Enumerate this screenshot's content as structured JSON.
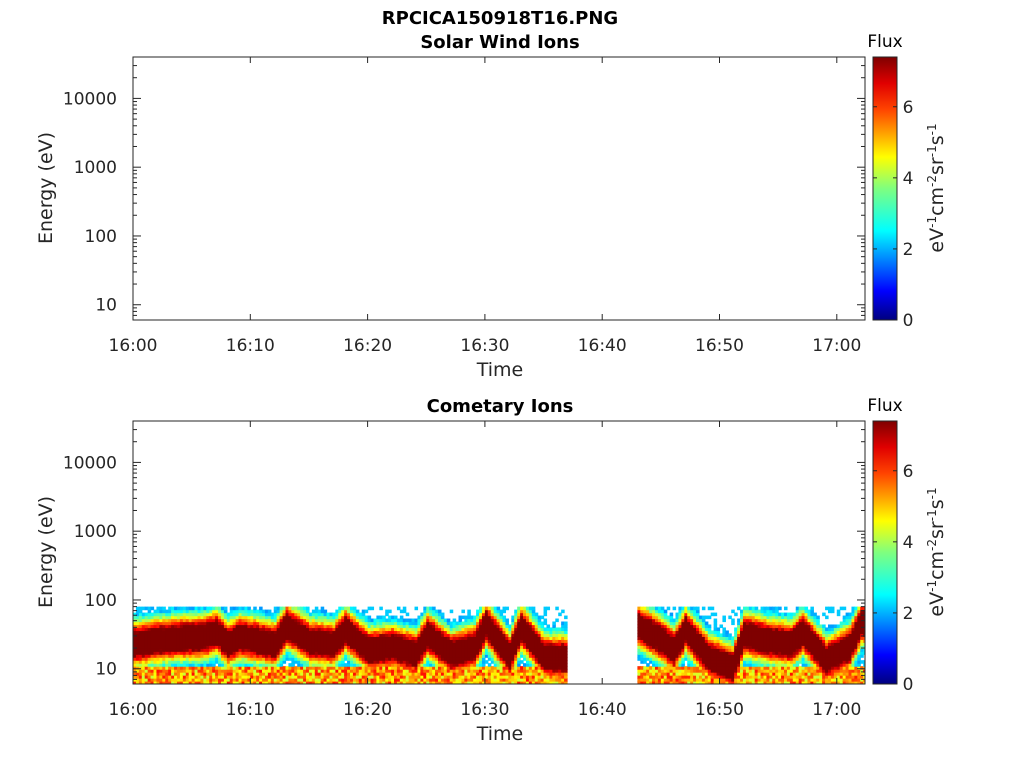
{
  "figure": {
    "title": "RPCICA150918T16.PNG"
  },
  "colors": {
    "colormap": [
      "#00007f",
      "#0000ff",
      "#007fff",
      "#00ffff",
      "#7fff7f",
      "#ffff00",
      "#ff7f00",
      "#ff0000",
      "#7f0000"
    ],
    "axes": "#262626",
    "background": "#ffffff"
  },
  "chart_data": [
    {
      "type": "heatmap",
      "title": "Solar Wind Ions",
      "xlabel": "Time",
      "ylabel": "Energy (eV)",
      "y_scale": "log",
      "xlim": [
        "16:00",
        "17:02"
      ],
      "ylim": [
        6,
        40000
      ],
      "x_ticks": [
        "16:00",
        "16:10",
        "16:20",
        "16:30",
        "16:40",
        "16:50",
        "17:00"
      ],
      "y_ticks": [
        "10",
        "100",
        "1000",
        "10000"
      ],
      "colorbar": {
        "label": "Flux",
        "units": "eV⁻¹cm⁻²sr⁻¹s⁻¹",
        "range": [
          0,
          7.4
        ],
        "ticks": [
          "0",
          "2",
          "4",
          "6"
        ]
      },
      "cells": []
    },
    {
      "type": "heatmap",
      "title": "Cometary Ions",
      "xlabel": "Time",
      "ylabel": "Energy (eV)",
      "y_scale": "log",
      "xlim": [
        "16:00",
        "17:02"
      ],
      "ylim": [
        6,
        40000
      ],
      "x_ticks": [
        "16:00",
        "16:10",
        "16:20",
        "16:30",
        "16:40",
        "16:50",
        "17:00"
      ],
      "y_ticks": [
        "10",
        "100",
        "1000",
        "10000"
      ],
      "colorbar": {
        "label": "Flux",
        "units": "eV⁻¹cm⁻²sr⁻¹s⁻¹",
        "range": [
          0,
          7.4
        ],
        "ticks": [
          "0",
          "2",
          "4",
          "6"
        ]
      },
      "data_gap": [
        "16:37",
        "16:43"
      ],
      "peak_energy_eV": [
        {
          "t": "16:00",
          "e": 22
        },
        {
          "t": "16:02",
          "e": 25
        },
        {
          "t": "16:04",
          "e": 27
        },
        {
          "t": "16:06",
          "e": 28
        },
        {
          "t": "16:07",
          "e": 33
        },
        {
          "t": "16:08",
          "e": 22
        },
        {
          "t": "16:09",
          "e": 28
        },
        {
          "t": "16:11",
          "e": 24
        },
        {
          "t": "16:12",
          "e": 22
        },
        {
          "t": "16:13",
          "e": 40
        },
        {
          "t": "16:15",
          "e": 24
        },
        {
          "t": "16:17",
          "e": 22
        },
        {
          "t": "16:18",
          "e": 35
        },
        {
          "t": "16:20",
          "e": 18
        },
        {
          "t": "16:22",
          "e": 20
        },
        {
          "t": "16:24",
          "e": 16
        },
        {
          "t": "16:25",
          "e": 30
        },
        {
          "t": "16:27",
          "e": 16
        },
        {
          "t": "16:29",
          "e": 20
        },
        {
          "t": "16:30",
          "e": 42
        },
        {
          "t": "16:32",
          "e": 15
        },
        {
          "t": "16:33",
          "e": 38
        },
        {
          "t": "16:35",
          "e": 14
        },
        {
          "t": "16:37",
          "e": 14
        },
        {
          "t": "16:43",
          "e": 40
        },
        {
          "t": "16:45",
          "e": 25
        },
        {
          "t": "16:46",
          "e": 18
        },
        {
          "t": "16:47",
          "e": 35
        },
        {
          "t": "16:49",
          "e": 14
        },
        {
          "t": "16:51",
          "e": 10
        },
        {
          "t": "16:52",
          "e": 30
        },
        {
          "t": "16:54",
          "e": 25
        },
        {
          "t": "16:56",
          "e": 22
        },
        {
          "t": "16:57",
          "e": 32
        },
        {
          "t": "16:59",
          "e": 13
        },
        {
          "t": "17:01",
          "e": 20
        },
        {
          "t": "17:02",
          "e": 45
        }
      ],
      "peak_flux": 7.2,
      "upper_cutoff_eV": 80
    }
  ]
}
